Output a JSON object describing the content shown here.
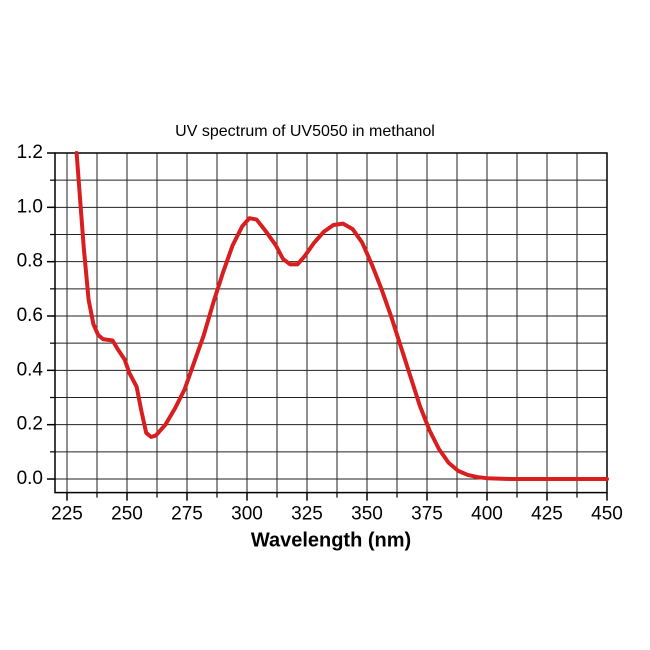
{
  "chart_data": {
    "type": "line",
    "title": "UV spectrum of UV5050  in methanol",
    "xlabel": "Wavelength (nm)",
    "x": [
      229,
      232,
      234,
      236,
      238,
      240,
      244,
      246,
      249,
      251,
      254,
      256,
      258,
      260,
      262,
      266,
      270,
      274,
      278,
      282,
      286,
      290,
      294,
      298,
      301,
      304,
      308,
      312,
      315,
      318,
      321,
      324,
      328,
      332,
      336,
      340,
      344,
      348,
      352,
      356,
      360,
      364,
      368,
      372,
      376,
      380,
      384,
      388,
      392,
      396,
      400,
      410,
      425,
      450
    ],
    "series": [
      {
        "name": "UV5050",
        "color": "#d81e1e",
        "values": [
          1.2,
          0.85,
          0.66,
          0.57,
          0.53,
          0.515,
          0.51,
          0.48,
          0.44,
          0.39,
          0.34,
          0.25,
          0.17,
          0.155,
          0.16,
          0.2,
          0.26,
          0.33,
          0.43,
          0.53,
          0.65,
          0.76,
          0.86,
          0.93,
          0.96,
          0.955,
          0.91,
          0.86,
          0.81,
          0.79,
          0.79,
          0.82,
          0.87,
          0.91,
          0.935,
          0.94,
          0.92,
          0.87,
          0.79,
          0.7,
          0.6,
          0.49,
          0.38,
          0.27,
          0.18,
          0.11,
          0.06,
          0.03,
          0.015,
          0.007,
          0.003,
          0,
          0,
          0
        ]
      }
    ],
    "xlim": [
      220,
      450
    ],
    "ylim": [
      -0.05,
      1.2
    ],
    "xticks": [
      225,
      250,
      275,
      300,
      325,
      350,
      375,
      400,
      425,
      450
    ],
    "yticks": [
      {
        "value": 0,
        "label": "0.0"
      },
      0.2,
      0.4,
      0.6,
      0.8,
      {
        "value": 1,
        "label": "1.0"
      },
      1.2
    ],
    "x_minor_ticks": [
      237.5,
      262.5,
      287.5,
      312.5,
      337.5,
      362.5,
      387.5,
      412.5,
      437.5
    ],
    "y_minor_ticks": [
      0.1,
      0.3,
      0.5,
      0.7,
      0.9,
      1.1
    ],
    "grid": true
  }
}
